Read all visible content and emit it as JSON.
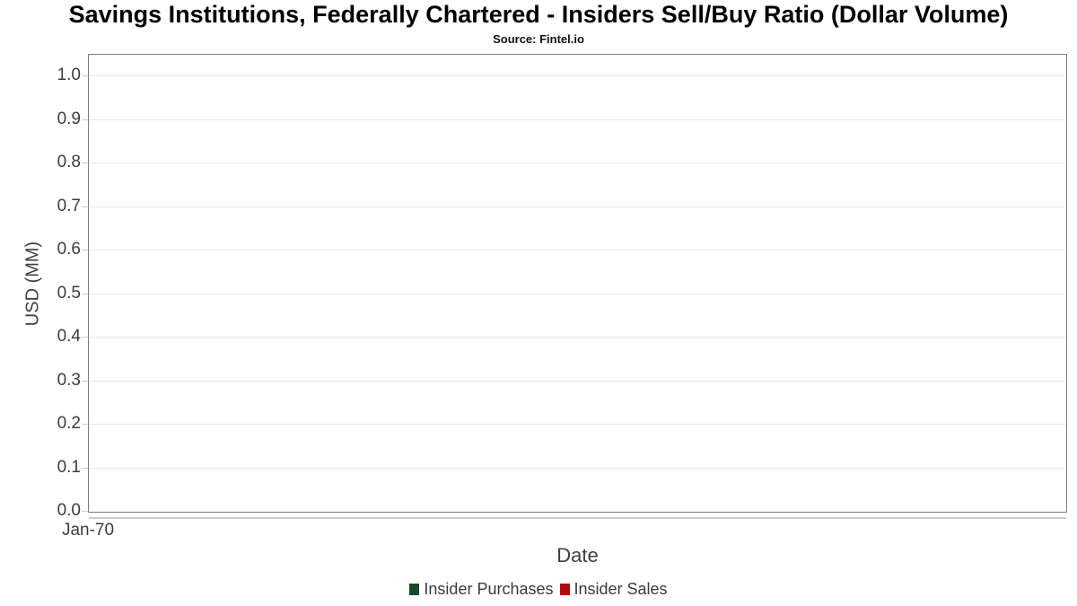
{
  "title": "Savings Institutions, Federally Chartered - Insiders Sell/Buy Ratio (Dollar Volume)",
  "subtitle": "Source: Fintel.io",
  "legend": {
    "items": [
      {
        "label": "Insider Purchases",
        "color": "#1a472a"
      },
      {
        "label": "Insider Sales",
        "color": "#b00b0b"
      }
    ]
  },
  "chart_data": {
    "type": "bar",
    "title": "Savings Institutions, Federally Chartered - Insiders Sell/Buy Ratio (Dollar Volume)",
    "subtitle": "Source: Fintel.io",
    "xlabel": "Date",
    "ylabel": "USD (MM)",
    "x_ticks": [
      "Jan-70"
    ],
    "y_ticks": [
      0.0,
      0.1,
      0.2,
      0.3,
      0.4,
      0.5,
      0.6,
      0.7,
      0.8,
      0.9,
      1.0
    ],
    "y_tick_labels": [
      "0.0",
      "0.1",
      "0.2",
      "0.3",
      "0.4",
      "0.5",
      "0.6",
      "0.7",
      "0.8",
      "0.9",
      "1.0"
    ],
    "ylim": [
      0,
      1.05
    ],
    "grid": true,
    "legend_position": "bottom",
    "series": [
      {
        "name": "Insider Purchases",
        "color": "#1a472a",
        "x": [],
        "values": []
      },
      {
        "name": "Insider Sales",
        "color": "#b00b0b",
        "x": [],
        "values": []
      }
    ]
  }
}
